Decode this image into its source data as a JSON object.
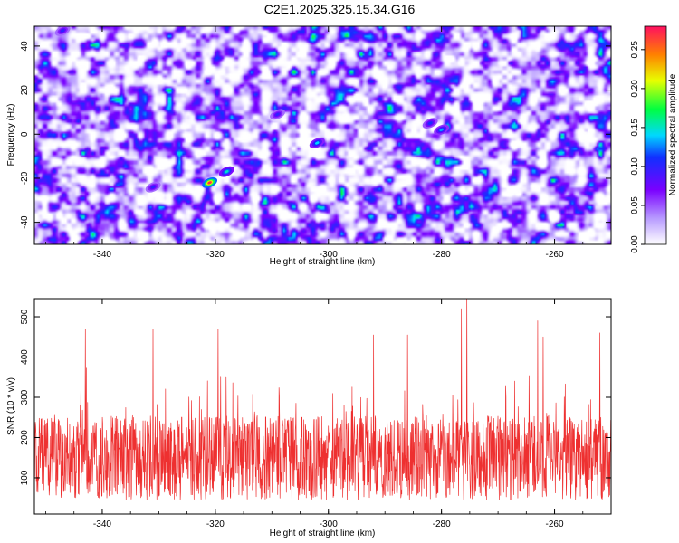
{
  "title": "C2E1.2025.325.15.34.G16",
  "chart_data": [
    {
      "type": "heatmap",
      "xlabel": "Height of straight line (km)",
      "ylabel": "Frequency (Hz)",
      "xlim": [
        -352,
        -250
      ],
      "ylim": [
        -50,
        49
      ],
      "xticks": [
        -340,
        -320,
        -300,
        -280,
        -260
      ],
      "yticks": [
        -40,
        -20,
        0,
        20,
        40
      ],
      "colorbar": {
        "label": "Normalized spectral amplitude",
        "range": [
          0.0,
          0.28
        ],
        "ticks": [
          0.0,
          0.05,
          0.1,
          0.15,
          0.2,
          0.25
        ],
        "tick_labels": [
          "0.00",
          "0.05",
          "0.10",
          "0.15",
          "0.20",
          "0.25"
        ]
      },
      "hotspots": [
        {
          "x": -321,
          "y": -22,
          "value": 0.27
        },
        {
          "x": -318,
          "y": -17,
          "value": 0.15
        },
        {
          "x": -302,
          "y": -4,
          "value": 0.14
        },
        {
          "x": -280,
          "y": 2,
          "value": 0.13
        },
        {
          "x": -282,
          "y": 5,
          "value": 0.11
        },
        {
          "x": -309,
          "y": 9,
          "value": 0.1
        },
        {
          "x": -331,
          "y": -24,
          "value": 0.1
        },
        {
          "x": -347,
          "y": 47,
          "value": 0.1
        }
      ]
    },
    {
      "type": "line",
      "xlabel": "Height of straight line (km)",
      "ylabel": "SNR (10 * v/v)",
      "xlim": [
        -352,
        -250
      ],
      "ylim": [
        10,
        545
      ],
      "xticks": [
        -340,
        -320,
        -300,
        -280,
        -260
      ],
      "yticks": [
        100,
        200,
        300,
        400,
        500
      ],
      "color": "#ee3030",
      "series": [
        {
          "name": "SNR",
          "baseline": 150,
          "typical_range": [
            50,
            330
          ],
          "peaks": [
            {
              "x": -275.5,
              "y": 545
            },
            {
              "x": -276.5,
              "y": 520
            },
            {
              "x": -263,
              "y": 490
            },
            {
              "x": -319.5,
              "y": 470
            },
            {
              "x": -331,
              "y": 470
            },
            {
              "x": -252,
              "y": 460
            },
            {
              "x": -343,
              "y": 470
            },
            {
              "x": -262,
              "y": 450
            },
            {
              "x": -292,
              "y": 455
            },
            {
              "x": -286,
              "y": 455
            }
          ]
        }
      ]
    }
  ]
}
